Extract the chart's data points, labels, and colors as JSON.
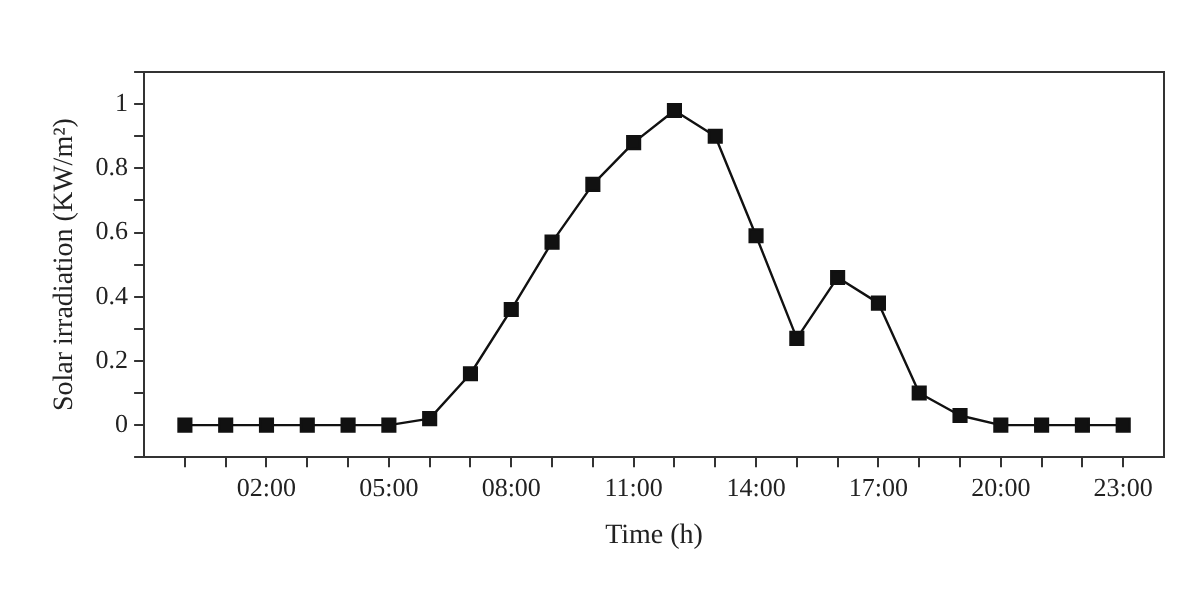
{
  "chart_data": {
    "type": "line",
    "xlabel": "Time (h)",
    "ylabel": "Solar irradiation (KW/m²)",
    "x": [
      0,
      1,
      2,
      3,
      4,
      5,
      6,
      7,
      8,
      9,
      10,
      11,
      12,
      13,
      14,
      15,
      16,
      17,
      18,
      19,
      20,
      21,
      22,
      23
    ],
    "series": [
      {
        "color": "#111111",
        "values": [
          0,
          0,
          0,
          0,
          0,
          0,
          0.02,
          0.16,
          0.36,
          0.57,
          0.75,
          0.88,
          0.98,
          0.9,
          0.59,
          0.27,
          0.46,
          0.38,
          0.1,
          0.03,
          0,
          0,
          0,
          0
        ]
      }
    ],
    "xlim": [
      -1,
      24
    ],
    "xticks": [
      {
        "value": 0,
        "label": null
      },
      {
        "value": 1,
        "label": null
      },
      {
        "value": 2,
        "label": "02:00"
      },
      {
        "value": 3,
        "label": null
      },
      {
        "value": 4,
        "label": null
      },
      {
        "value": 5,
        "label": "05:00"
      },
      {
        "value": 6,
        "label": null
      },
      {
        "value": 7,
        "label": null
      },
      {
        "value": 8,
        "label": "08:00"
      },
      {
        "value": 9,
        "label": null
      },
      {
        "value": 10,
        "label": null
      },
      {
        "value": 11,
        "label": "11:00"
      },
      {
        "value": 12,
        "label": null
      },
      {
        "value": 13,
        "label": null
      },
      {
        "value": 14,
        "label": "14:00"
      },
      {
        "value": 15,
        "label": null
      },
      {
        "value": 16,
        "label": null
      },
      {
        "value": 17,
        "label": "17:00"
      },
      {
        "value": 18,
        "label": null
      },
      {
        "value": 19,
        "label": null
      },
      {
        "value": 20,
        "label": "20:00"
      },
      {
        "value": 21,
        "label": null
      },
      {
        "value": 22,
        "label": null
      },
      {
        "value": 23,
        "label": "23:00"
      }
    ],
    "ylim": [
      -0.1,
      1.1
    ],
    "yticks": [
      {
        "value": -0.1,
        "label": null
      },
      0,
      {
        "value": 0.1,
        "label": null
      },
      0.2,
      {
        "value": 0.3,
        "label": null
      },
      0.4,
      {
        "value": 0.5,
        "label": null
      },
      0.6,
      {
        "value": 0.7,
        "label": null
      },
      0.8,
      {
        "value": 0.9,
        "label": null
      },
      1,
      {
        "value": 1.1,
        "label": null
      }
    ],
    "grid": false,
    "legend": false,
    "marker": "square",
    "line_style": "solid"
  }
}
